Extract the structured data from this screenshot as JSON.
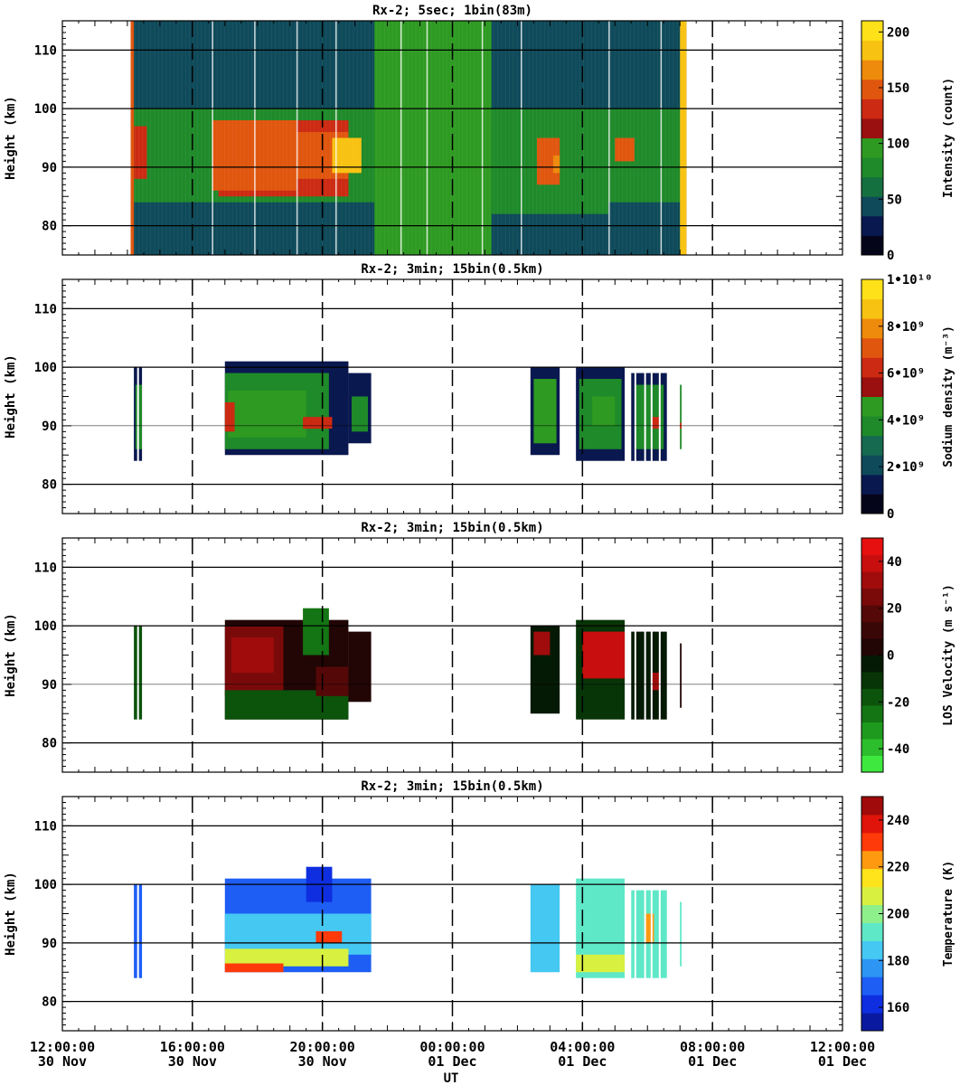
{
  "chart_data": [
    {
      "type": "heatmap",
      "title": "Rx-2;  5sec; 1bin(83m)",
      "ylabel": "Height (km)",
      "ylim": [
        75,
        115
      ],
      "yticks": [
        "80",
        "90",
        "100",
        "110"
      ],
      "xlim_hours": [
        0,
        24
      ],
      "colorbar": {
        "label": "Intensity (count)",
        "range": [
          0,
          210
        ],
        "tick_labels": [
          "0",
          "50",
          "100",
          "150",
          "200"
        ],
        "tick_values": [
          0,
          50,
          100,
          150,
          200
        ],
        "colors": [
          "#05051a",
          "#0a1850",
          "#0e4a5a",
          "#157040",
          "#1f8a2a",
          "#2e9a22",
          "#9a0f0f",
          "#cc2a12",
          "#e0560e",
          "#ee8a0c",
          "#f8c212",
          "#ffe11a"
        ]
      },
      "data_extent_hours": [
        2.1,
        19.2
      ],
      "layers": [
        {
          "t0": 2.1,
          "t1": 19.2,
          "h0": 75,
          "h1": 115,
          "c": 0.18
        },
        {
          "t0": 2.1,
          "t1": 19.2,
          "h0": 84,
          "h1": 100,
          "c": 0.38
        },
        {
          "t0": 4.8,
          "t1": 8.8,
          "h0": 85,
          "h1": 98,
          "c": 0.65
        },
        {
          "t0": 9.6,
          "t1": 13.2,
          "h0": 75,
          "h1": 115,
          "c": 0.45
        },
        {
          "t0": 13.2,
          "t1": 16.8,
          "h0": 82,
          "h1": 96,
          "c": 0.4
        },
        {
          "t0": 16.8,
          "t1": 19.2,
          "h0": 85,
          "h1": 96,
          "c": 0.4
        },
        {
          "t0": 2.2,
          "t1": 2.6,
          "h0": 88,
          "h1": 97,
          "c": 0.6
        },
        {
          "t0": 4.6,
          "t1": 7.2,
          "h0": 86,
          "h1": 98,
          "c": 0.72
        },
        {
          "t0": 7.0,
          "t1": 8.8,
          "h0": 88,
          "h1": 96,
          "c": 0.7
        },
        {
          "t0": 8.3,
          "t1": 9.2,
          "h0": 89,
          "h1": 95,
          "c": 0.88
        },
        {
          "t0": 14.6,
          "t1": 15.3,
          "h0": 87,
          "h1": 95,
          "c": 0.72
        },
        {
          "t0": 15.1,
          "t1": 15.3,
          "h0": 89,
          "h1": 92,
          "c": 0.82
        },
        {
          "t0": 17.0,
          "t1": 17.6,
          "h0": 91,
          "h1": 95,
          "c": 0.7
        },
        {
          "t0": 19.0,
          "t1": 19.2,
          "h0": 75,
          "h1": 115,
          "c": 0.9
        },
        {
          "t0": 2.1,
          "t1": 2.2,
          "h0": 75,
          "h1": 115,
          "c": 0.7
        }
      ]
    },
    {
      "type": "heatmap",
      "title": "Rx-2; 3min; 15bin(0.5km)",
      "ylabel": "Height (km)",
      "ylim": [
        75,
        115
      ],
      "yticks": [
        "80",
        "90",
        "100",
        "110"
      ],
      "xlim_hours": [
        0,
        24
      ],
      "colorbar": {
        "label": "Sodium density (m⁻³)",
        "range": [
          0,
          10
        ],
        "tick_labels": [
          "0",
          "2•10⁹",
          "4•10⁹",
          "6•10⁹",
          "8•10⁹",
          "1•10¹⁰"
        ],
        "tick_values": [
          0,
          2,
          4,
          6,
          8,
          10
        ],
        "colors": [
          "#05051a",
          "#0a1850",
          "#0e4a5a",
          "#156a50",
          "#1f8a2a",
          "#2e9a22",
          "#9a0f0f",
          "#cc2a12",
          "#e0560e",
          "#ee8a0c",
          "#f8c212",
          "#ffe11a"
        ]
      },
      "layers": [
        {
          "t0": 2.2,
          "t1": 2.5,
          "h0": 84,
          "h1": 100,
          "c": 0.1
        },
        {
          "t0": 2.25,
          "t1": 2.45,
          "h0": 86,
          "h1": 97,
          "c": 0.38
        },
        {
          "t0": 5.0,
          "t1": 8.8,
          "h0": 85,
          "h1": 101,
          "c": 0.1
        },
        {
          "t0": 5.0,
          "t1": 8.2,
          "h0": 86,
          "h1": 99,
          "c": 0.35
        },
        {
          "t0": 5.1,
          "t1": 7.5,
          "h0": 88,
          "h1": 96,
          "c": 0.46
        },
        {
          "t0": 5.0,
          "t1": 5.3,
          "h0": 89,
          "h1": 94,
          "c": 0.66
        },
        {
          "t0": 7.4,
          "t1": 8.3,
          "h0": 89.5,
          "h1": 91.5,
          "c": 0.62
        },
        {
          "t0": 8.8,
          "t1": 9.5,
          "h0": 87,
          "h1": 99,
          "c": 0.12
        },
        {
          "t0": 8.9,
          "t1": 9.4,
          "h0": 89,
          "h1": 95,
          "c": 0.4
        },
        {
          "t0": 14.4,
          "t1": 15.3,
          "h0": 85,
          "h1": 100,
          "c": 0.1
        },
        {
          "t0": 14.5,
          "t1": 15.2,
          "h0": 87,
          "h1": 98,
          "c": 0.44
        },
        {
          "t0": 15.8,
          "t1": 17.3,
          "h0": 84,
          "h1": 100,
          "c": 0.1
        },
        {
          "t0": 15.9,
          "t1": 17.2,
          "h0": 86,
          "h1": 98,
          "c": 0.35
        },
        {
          "t0": 16.3,
          "t1": 17.0,
          "h0": 90,
          "h1": 95,
          "c": 0.45
        },
        {
          "t0": 17.5,
          "t1": 18.6,
          "h0": 84,
          "h1": 99,
          "c": 0.12
        },
        {
          "t0": 17.6,
          "t1": 18.5,
          "h0": 86,
          "h1": 97,
          "c": 0.36
        },
        {
          "t0": 18.1,
          "t1": 18.4,
          "h0": 89.5,
          "h1": 91.5,
          "c": 0.66
        },
        {
          "t0": 19.0,
          "t1": 19.1,
          "h0": 86,
          "h1": 97,
          "c": 0.4
        },
        {
          "t0": 19.0,
          "t1": 19.1,
          "h0": 89.5,
          "h1": 90.5,
          "c": 0.66
        }
      ],
      "stripes": [
        2.3,
        2.45,
        17.6,
        17.9,
        18.1,
        18.35,
        18.6,
        19.05
      ]
    },
    {
      "type": "heatmap",
      "title": "Rx-2; 3min; 15bin(0.5km)",
      "ylabel": "Height (km)",
      "ylim": [
        75,
        115
      ],
      "yticks": [
        "80",
        "90",
        "100",
        "110"
      ],
      "xlim_hours": [
        0,
        24
      ],
      "colorbar": {
        "label": "LOS Velocity (m s⁻¹)",
        "range": [
          -50,
          50
        ],
        "tick_labels": [
          "-40",
          "-20",
          "0",
          "20",
          "40"
        ],
        "tick_values": [
          -40,
          -20,
          0,
          20,
          40
        ],
        "colors": [
          "#3fe83f",
          "#2cbe2c",
          "#1e9a1e",
          "#137513",
          "#0c530c",
          "#073507",
          "#051a05",
          "#220505",
          "#3a0707",
          "#550808",
          "#7a0a0a",
          "#a00c0c",
          "#c80e0e",
          "#e61010"
        ]
      },
      "layers": [
        {
          "t0": 2.2,
          "t1": 2.5,
          "h0": 84,
          "h1": 100,
          "c": 0.3
        },
        {
          "t0": 5.0,
          "t1": 8.8,
          "h0": 84,
          "h1": 101,
          "c": 0.52
        },
        {
          "t0": 5.0,
          "t1": 6.8,
          "h0": 88,
          "h1": 100,
          "c": 0.72
        },
        {
          "t0": 5.2,
          "t1": 6.5,
          "h0": 92,
          "h1": 98,
          "c": 0.8
        },
        {
          "t0": 5.0,
          "t1": 8.8,
          "h0": 84,
          "h1": 89,
          "c": 0.3
        },
        {
          "t0": 7.4,
          "t1": 8.2,
          "h0": 95,
          "h1": 103,
          "c": 0.25
        },
        {
          "t0": 7.8,
          "t1": 8.8,
          "h0": 88,
          "h1": 93,
          "c": 0.68
        },
        {
          "t0": 8.8,
          "t1": 9.5,
          "h0": 87,
          "h1": 99,
          "c": 0.5
        },
        {
          "t0": 14.4,
          "t1": 15.3,
          "h0": 85,
          "h1": 100,
          "c": 0.48
        },
        {
          "t0": 14.5,
          "t1": 15.0,
          "h0": 95,
          "h1": 99,
          "c": 0.82
        },
        {
          "t0": 15.8,
          "t1": 17.3,
          "h0": 84,
          "h1": 101,
          "c": 0.4
        },
        {
          "t0": 16.0,
          "t1": 17.3,
          "h0": 91,
          "h1": 99,
          "c": 0.86
        },
        {
          "t0": 17.5,
          "t1": 18.6,
          "h0": 84,
          "h1": 99,
          "c": 0.45
        },
        {
          "t0": 18.1,
          "t1": 18.4,
          "h0": 89,
          "h1": 92,
          "c": 0.8
        },
        {
          "t0": 19.0,
          "t1": 19.1,
          "h0": 86,
          "h1": 97,
          "c": 0.5
        }
      ],
      "stripes": [
        2.3,
        2.45,
        17.6,
        17.9,
        18.1,
        18.35,
        18.6,
        19.05
      ]
    },
    {
      "type": "heatmap",
      "title": "Rx-2; 3min; 15bin(0.5km)",
      "xlabel": "UT",
      "ylabel": "Height (km)",
      "ylim": [
        75,
        115
      ],
      "yticks": [
        "80",
        "90",
        "100",
        "110"
      ],
      "xlim_hours": [
        0,
        24
      ],
      "colorbar": {
        "label": "Temperature (K)",
        "range": [
          150,
          250
        ],
        "tick_labels": [
          "160",
          "180",
          "200",
          "220",
          "240"
        ],
        "tick_values": [
          160,
          180,
          200,
          220,
          240
        ],
        "colors": [
          "#0a1aa0",
          "#0e2ee0",
          "#1e5ef5",
          "#2d96f5",
          "#45c8f2",
          "#5fe8c8",
          "#8df08a",
          "#d8f040",
          "#ffe41c",
          "#ff9a10",
          "#ff3a0a",
          "#e0140a",
          "#a00a0a"
        ]
      },
      "layers": [
        {
          "t0": 2.2,
          "t1": 2.5,
          "h0": 84,
          "h1": 100,
          "c": 0.2
        },
        {
          "t0": 5.0,
          "t1": 9.5,
          "h0": 85,
          "h1": 101,
          "c": 0.18
        },
        {
          "t0": 5.0,
          "t1": 9.5,
          "h0": 88,
          "h1": 95,
          "c": 0.36
        },
        {
          "t0": 5.0,
          "t1": 8.8,
          "h0": 86,
          "h1": 89,
          "c": 0.55
        },
        {
          "t0": 5.0,
          "t1": 6.8,
          "h0": 85,
          "h1": 86.5,
          "c": 0.8
        },
        {
          "t0": 7.5,
          "t1": 8.3,
          "h0": 97,
          "h1": 103,
          "c": 0.1
        },
        {
          "t0": 7.8,
          "t1": 8.6,
          "h0": 90,
          "h1": 92,
          "c": 0.82
        },
        {
          "t0": 14.4,
          "t1": 15.3,
          "h0": 85,
          "h1": 100,
          "c": 0.38
        },
        {
          "t0": 15.8,
          "t1": 17.3,
          "h0": 84,
          "h1": 101,
          "c": 0.4
        },
        {
          "t0": 15.8,
          "t1": 17.3,
          "h0": 85,
          "h1": 88,
          "c": 0.58
        },
        {
          "t0": 17.5,
          "t1": 18.6,
          "h0": 84,
          "h1": 99,
          "c": 0.45
        },
        {
          "t0": 17.9,
          "t1": 18.2,
          "h0": 90,
          "h1": 95,
          "c": 0.7
        },
        {
          "t0": 19.0,
          "t1": 19.1,
          "h0": 86,
          "h1": 97,
          "c": 0.44
        }
      ],
      "stripes": [
        2.3,
        2.45,
        17.6,
        17.9,
        18.1,
        18.35,
        18.6,
        19.05
      ]
    }
  ],
  "x_axis": {
    "xlabel": "UT",
    "ticks": [
      {
        "hour": 0,
        "time": "12:00:00",
        "date": "30 Nov"
      },
      {
        "hour": 4,
        "time": "16:00:00",
        "date": "30 Nov"
      },
      {
        "hour": 8,
        "time": "20:00:00",
        "date": "30 Nov"
      },
      {
        "hour": 12,
        "time": "00:00:00",
        "date": "01 Dec"
      },
      {
        "hour": 16,
        "time": "04:00:00",
        "date": "01 Dec"
      },
      {
        "hour": 20,
        "time": "08:00:00",
        "date": "01 Dec"
      },
      {
        "hour": 24,
        "time": "12:00:00",
        "date": "01 Dec"
      }
    ]
  }
}
